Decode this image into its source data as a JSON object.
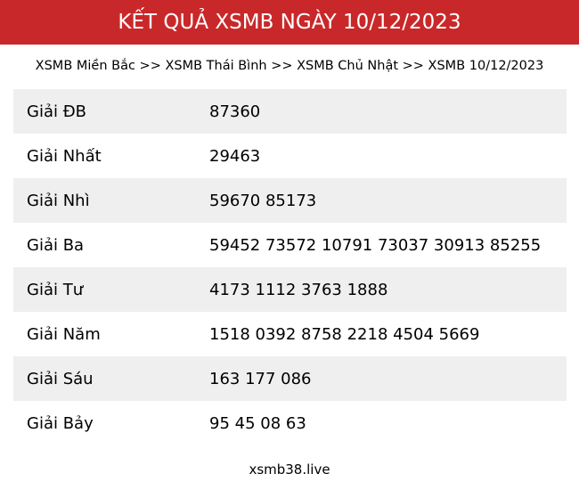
{
  "header": {
    "title": "KẾT QUẢ XSMB NGÀY 10/12/2023"
  },
  "breadcrumb": {
    "text": "XSMB Miền Bắc >> XSMB Thái Bình >> XSMB Chủ Nhật >> XSMB 10/12/2023"
  },
  "results": [
    {
      "label": "Giải ĐB",
      "value": "87360"
    },
    {
      "label": "Giải Nhất",
      "value": "29463"
    },
    {
      "label": "Giải Nhì",
      "value": "59670 85173"
    },
    {
      "label": "Giải Ba",
      "value": "59452 73572 10791 73037 30913 85255"
    },
    {
      "label": "Giải Tư",
      "value": "4173 1112 3763 1888"
    },
    {
      "label": "Giải Năm",
      "value": "1518 0392 8758 2218 4504 5669"
    },
    {
      "label": "Giải Sáu",
      "value": "163 177 086"
    },
    {
      "label": "Giải Bảy",
      "value": "95 45 08 63"
    }
  ],
  "footer": {
    "site": "xsmb38.live"
  },
  "colors": {
    "header_bg": "#c9282a",
    "row_alt": "#efefef"
  }
}
